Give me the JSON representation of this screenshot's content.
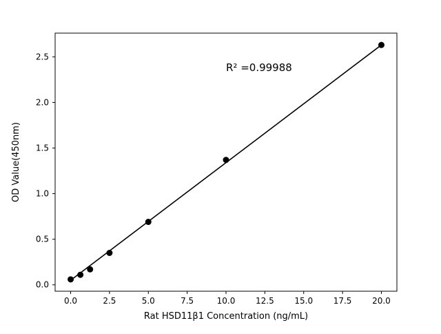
{
  "figure": {
    "background_color": "#ffffff",
    "line_color": "#000000",
    "marker_color": "#000000"
  },
  "chart_data": {
    "type": "scatter",
    "title": "",
    "xlabel": "Rat HSD11β1 Concentration (ng/mL)",
    "ylabel": "OD Value(450nm)",
    "x": [
      0,
      0.625,
      1.25,
      2.5,
      5,
      10,
      20
    ],
    "y": [
      0.06,
      0.11,
      0.17,
      0.35,
      0.69,
      1.37,
      2.63
    ],
    "fit_line": {
      "x": [
        0,
        20
      ],
      "y": [
        0.05,
        2.63
      ]
    },
    "annotation": {
      "text": "R² =0.99988",
      "x": 10,
      "y": 2.38
    },
    "x_ticks": [
      0.0,
      2.5,
      5.0,
      7.5,
      10.0,
      12.5,
      15.0,
      17.5,
      20.0
    ],
    "x_tick_labels": [
      "0.0",
      "2.5",
      "5.0",
      "7.5",
      "10.0",
      "12.5",
      "15.0",
      "17.5",
      "20.0"
    ],
    "y_ticks": [
      0.0,
      0.5,
      1.0,
      1.5,
      2.0,
      2.5
    ],
    "y_tick_labels": [
      "0.0",
      "0.5",
      "1.0",
      "1.5",
      "2.0",
      "2.5"
    ],
    "xlim": [
      -1,
      21
    ],
    "ylim": [
      -0.07,
      2.76
    ],
    "grid": false,
    "legend": "none"
  }
}
